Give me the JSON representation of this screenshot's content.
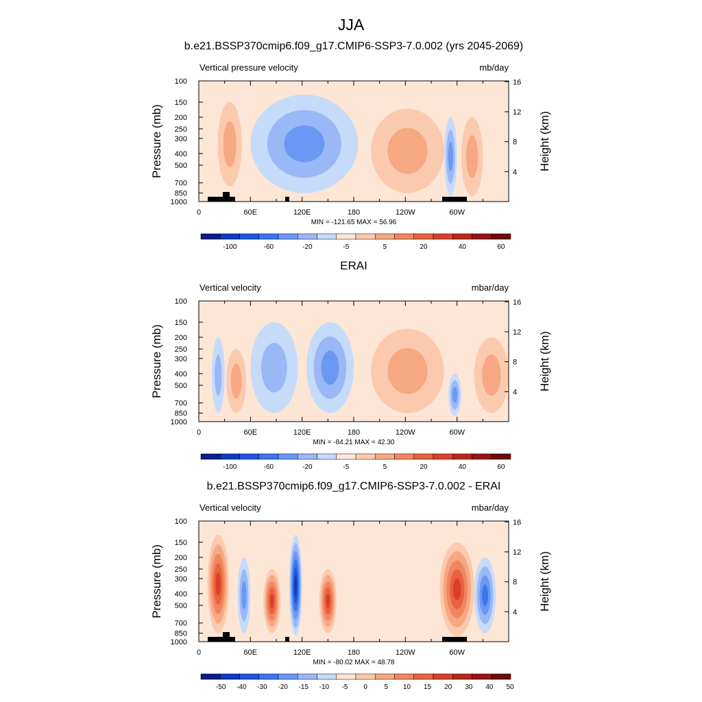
{
  "figure": {
    "title": "JJA",
    "x_ticks": [
      "0",
      "60E",
      "120E",
      "180",
      "120W",
      "60W"
    ],
    "p_ticks": [
      "100",
      "150",
      "200",
      "250",
      "300",
      "400",
      "500",
      "700",
      "850",
      "1000"
    ],
    "h_ticks": [
      "4",
      "8",
      "12",
      "16"
    ]
  },
  "chart_data": [
    {
      "type": "heatmap",
      "title": "b.e21.BSSP370cmip6.f09_g17.CMIP6-SSP3-7.0.002 (yrs 2045-2069)",
      "left_label": "Vertical pressure velocity",
      "right_label": "mb/day",
      "ylabel": "Pressure (mb)",
      "ylabel_right": "Height (km)",
      "minmax": "MIN = -121.65  MAX =  56.96",
      "x_range": [
        0,
        360
      ],
      "y_range_mb": [
        100,
        1000
      ],
      "colorbar": {
        "levels": [
          "-100",
          "-60",
          "-20",
          "-5",
          "5",
          "20",
          "40",
          "60"
        ],
        "colors": [
          "#0a1e86",
          "#0e3ac0",
          "#1c55de",
          "#3a75ee",
          "#6a98f2",
          "#9ab8f5",
          "#c6dbf9",
          "#fde6d6",
          "#fbcaae",
          "#f6a883",
          "#f08660",
          "#e8623d",
          "#d8402a",
          "#b8271e",
          "#921515",
          "#6e0b0b"
        ]
      },
      "features": [
        {
          "lon": [
            22,
            50
          ],
          "lev": [
            150,
            750
          ],
          "value": 15
        },
        {
          "lon": [
            60,
            185
          ],
          "lev": [
            130,
            850
          ],
          "value": -20
        },
        {
          "lon": [
            200,
            285
          ],
          "lev": [
            170,
            850
          ],
          "value": 15
        },
        {
          "lon": [
            285,
            300
          ],
          "lev": [
            200,
            900
          ],
          "value": -25
        },
        {
          "lon": [
            305,
            330
          ],
          "lev": [
            200,
            900
          ],
          "value": 12
        }
      ]
    },
    {
      "type": "heatmap",
      "title": "ERAI",
      "left_label": "Vertical velocity",
      "right_label": "mbar/day",
      "ylabel": "Pressure (mb)",
      "ylabel_right": "Height (km)",
      "minmax": "MIN = -84.21  MAX =  42.30",
      "x_range": [
        0,
        360
      ],
      "y_range_mb": [
        100,
        1000
      ],
      "colorbar": {
        "levels": [
          "-100",
          "-60",
          "-20",
          "-5",
          "5",
          "20",
          "40",
          "60"
        ],
        "colors": [
          "#0a1e86",
          "#0e3ac0",
          "#1c55de",
          "#3a75ee",
          "#6a98f2",
          "#9ab8f5",
          "#c6dbf9",
          "#fde6d6",
          "#fbcaae",
          "#f6a883",
          "#f08660",
          "#e8623d",
          "#d8402a",
          "#b8271e",
          "#921515",
          "#6e0b0b"
        ]
      },
      "features": [
        {
          "lon": [
            15,
            30
          ],
          "lev": [
            200,
            850
          ],
          "value": -15
        },
        {
          "lon": [
            32,
            55
          ],
          "lev": [
            250,
            850
          ],
          "value": 18
        },
        {
          "lon": [
            60,
            115
          ],
          "lev": [
            150,
            850
          ],
          "value": -12
        },
        {
          "lon": [
            125,
            180
          ],
          "lev": [
            150,
            850
          ],
          "value": -20
        },
        {
          "lon": [
            200,
            285
          ],
          "lev": [
            170,
            850
          ],
          "value": 12
        },
        {
          "lon": [
            290,
            305
          ],
          "lev": [
            400,
            900
          ],
          "value": -20
        },
        {
          "lon": [
            320,
            360
          ],
          "lev": [
            200,
            850
          ],
          "value": 10
        }
      ]
    },
    {
      "type": "heatmap",
      "title": "b.e21.BSSP370cmip6.f09_g17.CMIP6-SSP3-7.0.002 - ERAI",
      "left_label": "Vertical velocity",
      "right_label": "mbar/day",
      "ylabel": "Pressure (mb)",
      "ylabel_right": "Height (km)",
      "minmax": "MIN = -80.02  MAX =  48.78",
      "x_range": [
        0,
        360
      ],
      "y_range_mb": [
        100,
        1000
      ],
      "colorbar": {
        "levels": [
          "-50",
          "-40",
          "-30",
          "-20",
          "-15",
          "-10",
          "-5",
          "0",
          "5",
          "10",
          "15",
          "20",
          "30",
          "40",
          "50"
        ],
        "colors": [
          "#0a1e86",
          "#0e3ac0",
          "#1c55de",
          "#3a75ee",
          "#6a98f2",
          "#9ab8f5",
          "#c6dbf9",
          "#fde6d6",
          "#fbcaae",
          "#f6a883",
          "#f08660",
          "#e8623d",
          "#d8402a",
          "#b8271e",
          "#921515",
          "#6e0b0b"
        ]
      },
      "features": [
        {
          "lon": [
            10,
            35
          ],
          "lev": [
            130,
            850
          ],
          "value": 20
        },
        {
          "lon": [
            45,
            60
          ],
          "lev": [
            200,
            850
          ],
          "value": -12
        },
        {
          "lon": [
            75,
            95
          ],
          "lev": [
            250,
            850
          ],
          "value": 20
        },
        {
          "lon": [
            105,
            120
          ],
          "lev": [
            130,
            900
          ],
          "value": -30
        },
        {
          "lon": [
            140,
            160
          ],
          "lev": [
            250,
            850
          ],
          "value": 22
        },
        {
          "lon": [
            280,
            320
          ],
          "lev": [
            150,
            900
          ],
          "value": 25
        },
        {
          "lon": [
            320,
            345
          ],
          "lev": [
            200,
            850
          ],
          "value": -15
        }
      ]
    }
  ]
}
